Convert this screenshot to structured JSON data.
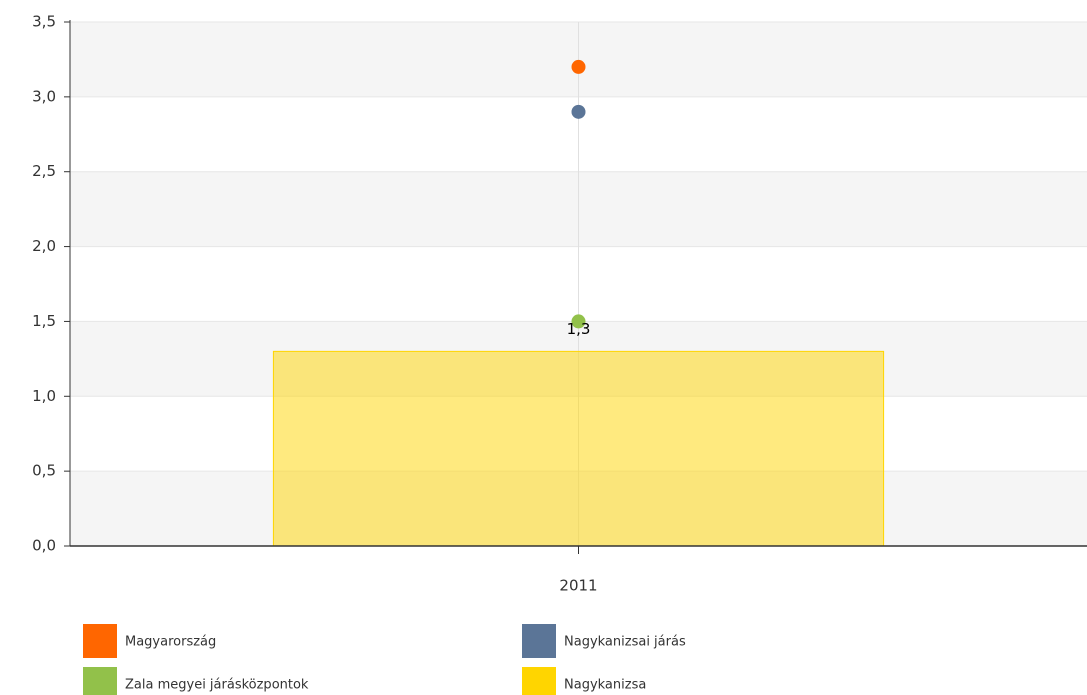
{
  "chart_data": {
    "type": "bar",
    "categories": [
      "2011"
    ],
    "series": [
      {
        "name": "Magyarország",
        "color": "#ff6600",
        "type": "scatter",
        "values": [
          3.2
        ]
      },
      {
        "name": "Nagykanizsai járás",
        "color": "#5b7597",
        "type": "scatter",
        "values": [
          2.9
        ]
      },
      {
        "name": "Zala megyei járásközpontok",
        "color": "#92c14a",
        "type": "scatter",
        "values": [
          1.5
        ]
      },
      {
        "name": "Nagykanizsa",
        "color": "#ffd500",
        "type": "bar",
        "values": [
          1.3
        ],
        "value_labels": [
          "1,3"
        ]
      }
    ],
    "ylim": [
      0,
      3.5
    ],
    "yticks": [
      {
        "value": 0,
        "label": "0,0"
      },
      {
        "value": 0.5,
        "label": "0,5"
      },
      {
        "value": 1,
        "label": "1,0"
      },
      {
        "value": 1.5,
        "label": "1,5"
      },
      {
        "value": 2,
        "label": "2,0"
      },
      {
        "value": 2.5,
        "label": "2,5"
      },
      {
        "value": 3,
        "label": "3,0"
      },
      {
        "value": 3.5,
        "label": "3,5"
      }
    ],
    "grid": true
  }
}
